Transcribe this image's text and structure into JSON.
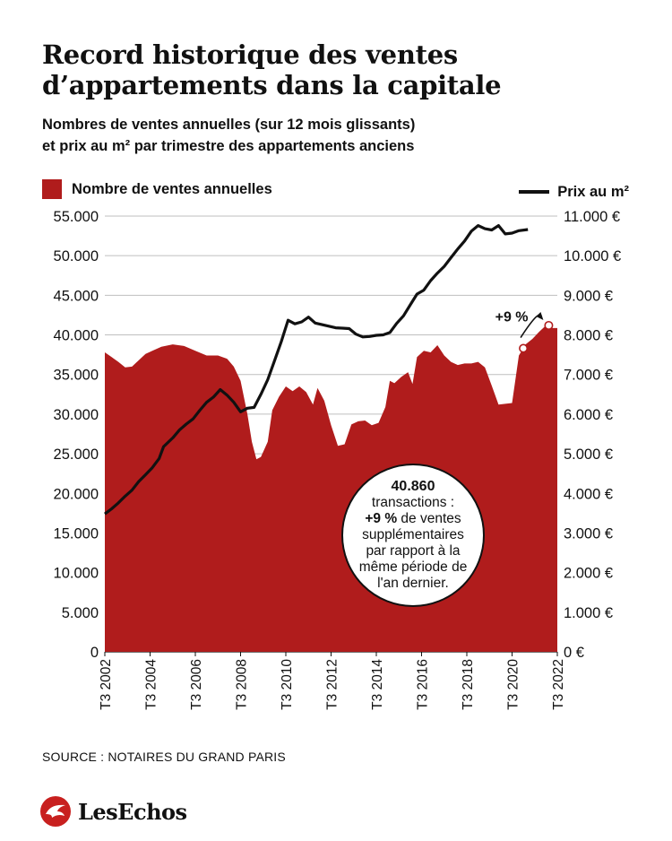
{
  "header": {
    "title": "Record historique des ventes d’appartements dans la capitale",
    "subtitle_line1": "Nombres de ventes annuelles (sur 12 mois glissants)",
    "subtitle_line2": "et prix au m² par trimestre des appartements anciens"
  },
  "legend": {
    "sales": "Nombre de ventes annuelles",
    "price": "Prix au m²"
  },
  "callout": {
    "value": "40.860",
    "line2": "transactions :",
    "line3_bold": "+9 %",
    "line3_rest": " de ventes",
    "line4": "supplémentaires",
    "line5": "par rapport à la",
    "line6": "même période de",
    "line7": "l'an dernier."
  },
  "annotation": "+9 %",
  "footer": {
    "source": "SOURCE : NOTAIRES DU GRAND PARIS",
    "brand": "LesEchos"
  },
  "colors": {
    "sales_area": "#b01c1c",
    "price_line": "#111111",
    "logo": "#c8201f"
  },
  "chart_data": {
    "type": "area",
    "x_start": 2002.5,
    "x_end": 2022.5,
    "x_ticks": [
      "T3 2002",
      "T3 2004",
      "T3 2006",
      "T3 2008",
      "T3 2010",
      "T3 2012",
      "T3 2014",
      "T3 2016",
      "T3 2018",
      "T3 2020",
      "T3 2022"
    ],
    "y_left": {
      "min": 0,
      "max": 55000,
      "ticks": [
        "0",
        "5.000",
        "10.000",
        "15.000",
        "20.000",
        "25.000",
        "30.000",
        "35.000",
        "40.000",
        "45.000",
        "50.000",
        "55.000"
      ]
    },
    "y_right": {
      "min": 0,
      "max": 11000,
      "ticks": [
        "0 €",
        "1.000 €",
        "2.000 €",
        "3.000 €",
        "4.000 €",
        "5.000 €",
        "6.000 €",
        "7.000 €",
        "8.000 €",
        "9.000 €",
        "10.000 €",
        "11.000 €"
      ]
    },
    "series": [
      {
        "name": "Nombre de ventes annuelles",
        "axis": "left",
        "type": "area",
        "points": [
          [
            2002.5,
            37800
          ],
          [
            2002.8,
            37200
          ],
          [
            2003.1,
            36600
          ],
          [
            2003.4,
            35900
          ],
          [
            2003.7,
            36000
          ],
          [
            2004.0,
            36800
          ],
          [
            2004.3,
            37600
          ],
          [
            2004.6,
            38000
          ],
          [
            2005.0,
            38500
          ],
          [
            2005.5,
            38800
          ],
          [
            2006.0,
            38600
          ],
          [
            2006.5,
            38000
          ],
          [
            2007.0,
            37400
          ],
          [
            2007.5,
            37400
          ],
          [
            2007.9,
            37000
          ],
          [
            2008.2,
            36000
          ],
          [
            2008.5,
            34200
          ],
          [
            2008.8,
            30000
          ],
          [
            2009.0,
            26500
          ],
          [
            2009.2,
            24300
          ],
          [
            2009.4,
            24600
          ],
          [
            2009.7,
            26500
          ],
          [
            2009.9,
            30500
          ],
          [
            2010.2,
            32200
          ],
          [
            2010.5,
            33500
          ],
          [
            2010.8,
            32900
          ],
          [
            2011.1,
            33500
          ],
          [
            2011.4,
            32800
          ],
          [
            2011.7,
            31200
          ],
          [
            2011.9,
            33300
          ],
          [
            2012.2,
            31700
          ],
          [
            2012.5,
            28600
          ],
          [
            2012.8,
            26000
          ],
          [
            2013.1,
            26200
          ],
          [
            2013.4,
            28700
          ],
          [
            2013.7,
            29100
          ],
          [
            2014.0,
            29200
          ],
          [
            2014.3,
            28600
          ],
          [
            2014.6,
            28900
          ],
          [
            2014.9,
            30900
          ],
          [
            2015.1,
            34200
          ],
          [
            2015.3,
            33900
          ],
          [
            2015.6,
            34700
          ],
          [
            2015.9,
            35300
          ],
          [
            2016.1,
            33800
          ],
          [
            2016.3,
            37200
          ],
          [
            2016.6,
            38000
          ],
          [
            2016.9,
            37800
          ],
          [
            2017.2,
            38700
          ],
          [
            2017.5,
            37400
          ],
          [
            2017.8,
            36600
          ],
          [
            2018.1,
            36200
          ],
          [
            2018.4,
            36400
          ],
          [
            2018.7,
            36400
          ],
          [
            2019.0,
            36600
          ],
          [
            2019.3,
            35900
          ],
          [
            2019.6,
            33600
          ],
          [
            2019.9,
            31200
          ],
          [
            2020.2,
            31300
          ],
          [
            2020.5,
            31400
          ],
          [
            2020.8,
            37400
          ],
          [
            2021.1,
            38800
          ],
          [
            2021.4,
            39500
          ],
          [
            2021.7,
            40400
          ],
          [
            2022.0,
            41200
          ],
          [
            2022.2,
            40860
          ],
          [
            2022.5,
            40860
          ]
        ]
      },
      {
        "name": "Prix au m²",
        "axis": "right",
        "type": "line",
        "points": [
          [
            2002.5,
            3480
          ],
          [
            2002.8,
            3610
          ],
          [
            2003.1,
            3760
          ],
          [
            2003.4,
            3930
          ],
          [
            2003.7,
            4080
          ],
          [
            2004.0,
            4300
          ],
          [
            2004.3,
            4470
          ],
          [
            2004.6,
            4650
          ],
          [
            2004.9,
            4880
          ],
          [
            2005.1,
            5180
          ],
          [
            2005.5,
            5400
          ],
          [
            2005.8,
            5600
          ],
          [
            2006.1,
            5750
          ],
          [
            2006.4,
            5880
          ],
          [
            2006.7,
            6100
          ],
          [
            2007.0,
            6300
          ],
          [
            2007.3,
            6430
          ],
          [
            2007.6,
            6620
          ],
          [
            2007.9,
            6480
          ],
          [
            2008.2,
            6300
          ],
          [
            2008.5,
            6060
          ],
          [
            2008.8,
            6150
          ],
          [
            2009.1,
            6170
          ],
          [
            2009.4,
            6500
          ],
          [
            2009.7,
            6870
          ],
          [
            2010.0,
            7350
          ],
          [
            2010.3,
            7830
          ],
          [
            2010.6,
            8370
          ],
          [
            2010.9,
            8280
          ],
          [
            2011.2,
            8330
          ],
          [
            2011.5,
            8450
          ],
          [
            2011.8,
            8300
          ],
          [
            2012.1,
            8260
          ],
          [
            2012.4,
            8220
          ],
          [
            2012.7,
            8180
          ],
          [
            2013.0,
            8170
          ],
          [
            2013.3,
            8160
          ],
          [
            2013.6,
            8020
          ],
          [
            2013.9,
            7950
          ],
          [
            2014.2,
            7960
          ],
          [
            2014.5,
            7990
          ],
          [
            2014.8,
            8000
          ],
          [
            2015.1,
            8060
          ],
          [
            2015.4,
            8290
          ],
          [
            2015.7,
            8480
          ],
          [
            2016.0,
            8760
          ],
          [
            2016.3,
            9030
          ],
          [
            2016.6,
            9130
          ],
          [
            2016.9,
            9370
          ],
          [
            2017.2,
            9560
          ],
          [
            2017.5,
            9730
          ],
          [
            2017.8,
            9950
          ],
          [
            2018.1,
            10170
          ],
          [
            2018.4,
            10370
          ],
          [
            2018.7,
            10620
          ],
          [
            2019.0,
            10760
          ],
          [
            2019.3,
            10680
          ],
          [
            2019.6,
            10650
          ],
          [
            2019.9,
            10760
          ],
          [
            2020.2,
            10550
          ],
          [
            2020.5,
            10570
          ],
          [
            2020.8,
            10630
          ],
          [
            2021.2,
            10660
          ]
        ]
      }
    ],
    "annotations": [
      {
        "text": "+9 %",
        "from": [
          2020.8,
          37400
        ],
        "to": [
          2022.2,
          40860
        ]
      }
    ]
  }
}
